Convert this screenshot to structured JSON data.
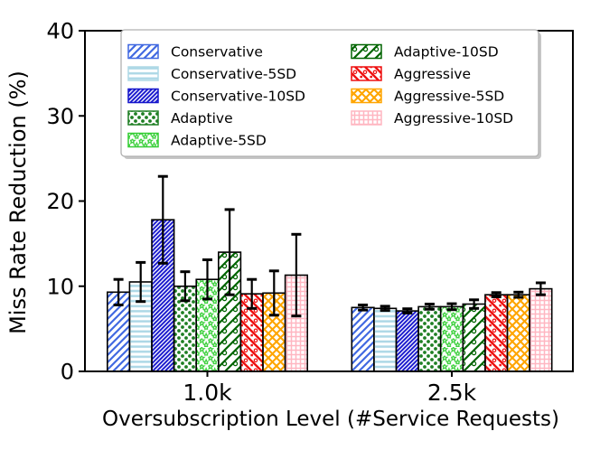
{
  "figure": {
    "background": "#ffffff",
    "axis_color": "#000000"
  },
  "chart_data": {
    "type": "bar",
    "title": "",
    "xlabel": "Oversubscription Level (#Service Requests)",
    "ylabel": "Miss Rate Reduction (%)",
    "categories": [
      "1.0k",
      "2.5k"
    ],
    "ylim": [
      0,
      40
    ],
    "yticks": [
      0,
      10,
      20,
      30,
      40
    ],
    "grid": false,
    "legend_position": "upper center, 2 columns, framed with shadow",
    "bar_face_color": "#ffffff",
    "bar_edge_color": "#000000",
    "error_bar_color": "#000000",
    "series": [
      {
        "name": "Conservative",
        "color": "#4169E1",
        "hatch": "//",
        "values": [
          9.3,
          7.5
        ],
        "errors": [
          1.5,
          0.3
        ]
      },
      {
        "name": "Conservative-5SD",
        "color": "#ADD8E6",
        "hatch": "--",
        "values": [
          10.5,
          7.4
        ],
        "errors": [
          2.3,
          0.25
        ]
      },
      {
        "name": "Conservative-10SD",
        "color": "#1515CC",
        "hatch": "////",
        "values": [
          17.8,
          7.1
        ],
        "errors": [
          5.1,
          0.25
        ]
      },
      {
        "name": "Adaptive",
        "color": "#1F7F24",
        "hatch": "oo",
        "values": [
          10.0,
          7.6
        ],
        "errors": [
          1.7,
          0.3
        ]
      },
      {
        "name": "Adaptive-5SD",
        "color": "#32CD32",
        "hatch": "**",
        "values": [
          10.8,
          7.6
        ],
        "errors": [
          2.3,
          0.35
        ]
      },
      {
        "name": "Adaptive-10SD",
        "color": "#006400",
        "hatch": "/o",
        "values": [
          14.0,
          7.9
        ],
        "errors": [
          5.0,
          0.5
        ]
      },
      {
        "name": "Aggressive",
        "color": "#EE1111",
        "hatch": "\\.",
        "values": [
          9.1,
          9.0
        ],
        "errors": [
          1.7,
          0.25
        ]
      },
      {
        "name": "Aggressive-5SD",
        "color": "#FFA500",
        "hatch": "xx",
        "values": [
          9.2,
          9.0
        ],
        "errors": [
          2.6,
          0.3
        ]
      },
      {
        "name": "Aggressive-10SD",
        "color": "#FFB6C1",
        "hatch": "++",
        "values": [
          11.3,
          9.7
        ],
        "errors": [
          4.8,
          0.7
        ]
      }
    ]
  }
}
